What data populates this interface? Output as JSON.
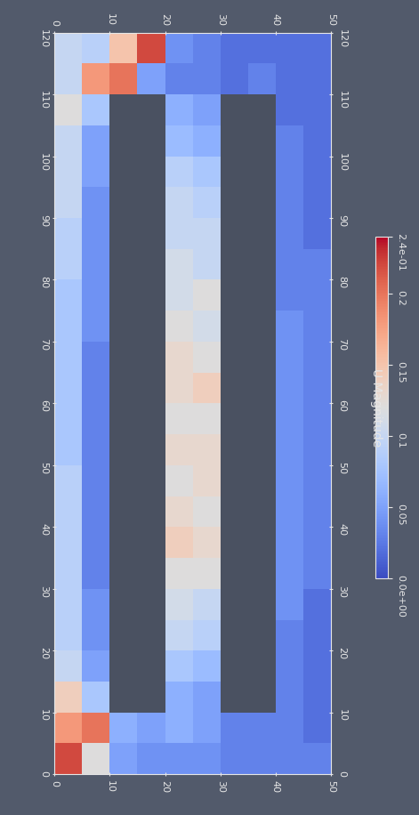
{
  "chart_data": {
    "type": "heatmap",
    "xlim": [
      0,
      50
    ],
    "xticks": [
      0,
      10,
      20,
      30,
      40,
      50
    ],
    "ylim": [
      0,
      120
    ],
    "yticks": [
      0,
      10,
      20,
      30,
      40,
      50,
      60,
      70,
      80,
      90,
      100,
      110,
      120
    ],
    "grid": false,
    "cells": [
      [
        0.22,
        0.12,
        0.05,
        0.04,
        0.04,
        0.04,
        0.03,
        0.03,
        0.03,
        0.03
      ],
      [
        0.18,
        0.2,
        0.06,
        0.05,
        0.06,
        0.05,
        0.03,
        0.03,
        0.03,
        0.02
      ],
      [
        0.14,
        0.08,
        null,
        null,
        0.06,
        0.05,
        null,
        null,
        0.03,
        0.02
      ],
      [
        0.1,
        0.05,
        null,
        null,
        0.08,
        0.07,
        null,
        null,
        0.03,
        0.02
      ],
      [
        0.09,
        0.04,
        null,
        null,
        0.1,
        0.09,
        null,
        null,
        0.03,
        0.02
      ],
      [
        0.09,
        0.04,
        null,
        null,
        0.11,
        0.1,
        null,
        null,
        0.04,
        0.02
      ],
      [
        0.09,
        0.03,
        null,
        null,
        0.12,
        0.12,
        null,
        null,
        0.04,
        0.03
      ],
      [
        0.09,
        0.03,
        null,
        null,
        0.14,
        0.13,
        null,
        null,
        0.04,
        0.03
      ],
      [
        0.09,
        0.03,
        null,
        null,
        0.13,
        0.12,
        null,
        null,
        0.04,
        0.03
      ],
      [
        0.09,
        0.03,
        null,
        null,
        0.12,
        0.13,
        null,
        null,
        0.04,
        0.03
      ],
      [
        0.08,
        0.03,
        null,
        null,
        0.13,
        0.13,
        null,
        null,
        0.04,
        0.03
      ],
      [
        0.08,
        0.03,
        null,
        null,
        0.12,
        0.12,
        null,
        null,
        0.04,
        0.03
      ],
      [
        0.08,
        0.03,
        null,
        null,
        0.13,
        0.14,
        null,
        null,
        0.04,
        0.03
      ],
      [
        0.08,
        0.03,
        null,
        null,
        0.13,
        0.12,
        null,
        null,
        0.04,
        0.03
      ],
      [
        0.08,
        0.04,
        null,
        null,
        0.12,
        0.11,
        null,
        null,
        0.04,
        0.03
      ],
      [
        0.08,
        0.04,
        null,
        null,
        0.11,
        0.12,
        null,
        null,
        0.03,
        0.03
      ],
      [
        0.09,
        0.04,
        null,
        null,
        0.11,
        0.1,
        null,
        null,
        0.03,
        0.03
      ],
      [
        0.09,
        0.04,
        null,
        null,
        0.1,
        0.1,
        null,
        null,
        0.03,
        0.02
      ],
      [
        0.1,
        0.04,
        null,
        null,
        0.1,
        0.09,
        null,
        null,
        0.03,
        0.02
      ],
      [
        0.1,
        0.05,
        null,
        null,
        0.09,
        0.08,
        null,
        null,
        0.03,
        0.02
      ],
      [
        0.1,
        0.05,
        null,
        null,
        0.07,
        0.06,
        null,
        null,
        0.03,
        0.02
      ],
      [
        0.12,
        0.08,
        null,
        null,
        0.06,
        0.05,
        null,
        null,
        0.02,
        0.02
      ],
      [
        0.1,
        0.18,
        0.2,
        0.05,
        0.03,
        0.03,
        0.02,
        0.03,
        0.02,
        0.02
      ],
      [
        0.1,
        0.09,
        0.15,
        0.22,
        0.04,
        0.03,
        0.02,
        0.02,
        0.02,
        0.02
      ]
    ],
    "colorbar": {
      "label": "U Magnitude",
      "range": [
        0,
        0.24
      ],
      "ticks": [
        {
          "value": 0,
          "label": "0.0e+00"
        },
        0.05,
        0.1,
        0.15,
        0.2,
        {
          "value": 0.24,
          "label": "2.4e-01"
        }
      ]
    }
  }
}
